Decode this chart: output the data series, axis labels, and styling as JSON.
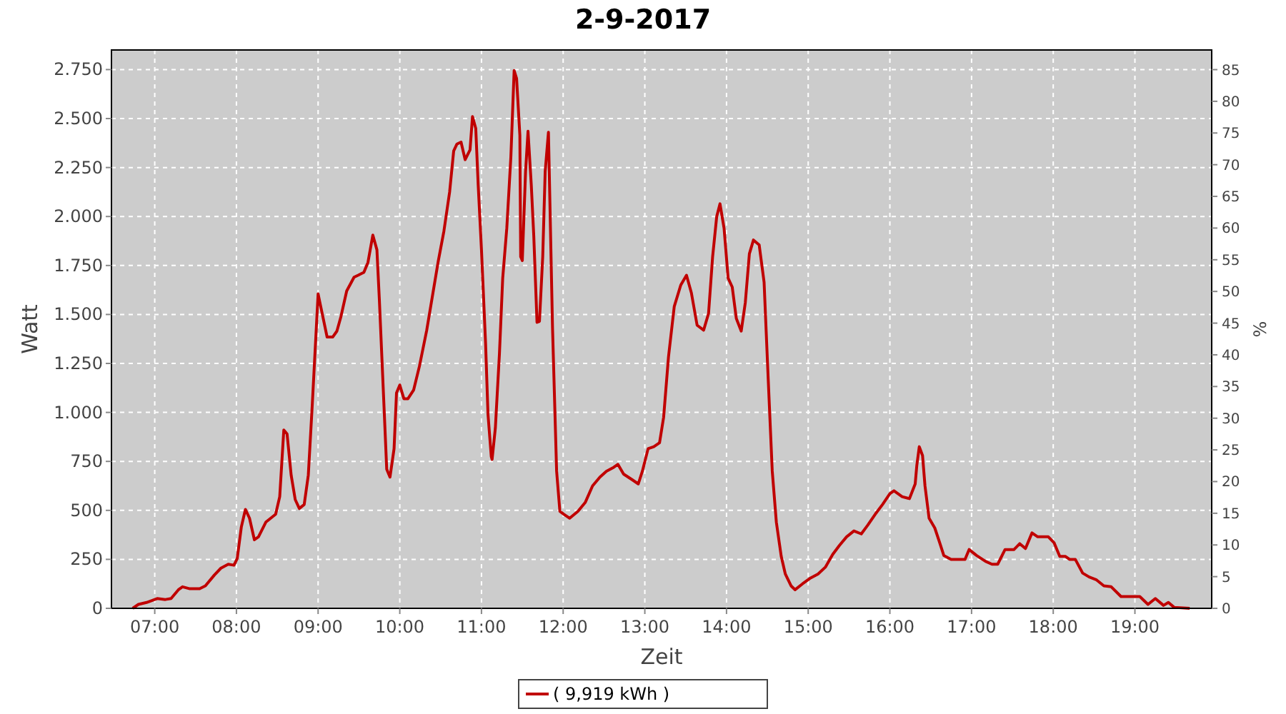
{
  "chart_data": {
    "type": "line",
    "title": "2-9-2017",
    "xlabel": "Zeit",
    "ylabel": "Watt",
    "y2label": "%",
    "xlim": [
      6.47,
      19.94
    ],
    "ylim": [
      0,
      2850
    ],
    "y2lim": [
      0,
      88.1
    ],
    "xticks": [
      {
        "value": 7,
        "label": "07:00"
      },
      {
        "value": 8,
        "label": "08:00"
      },
      {
        "value": 9,
        "label": "09:00"
      },
      {
        "value": 10,
        "label": "10:00"
      },
      {
        "value": 11,
        "label": "11:00"
      },
      {
        "value": 12,
        "label": "12:00"
      },
      {
        "value": 13,
        "label": "13:00"
      },
      {
        "value": 14,
        "label": "14:00"
      },
      {
        "value": 15,
        "label": "15:00"
      },
      {
        "value": 16,
        "label": "16:00"
      },
      {
        "value": 17,
        "label": "17:00"
      },
      {
        "value": 18,
        "label": "18:00"
      },
      {
        "value": 19,
        "label": "19:00"
      }
    ],
    "yticks": [
      0,
      250,
      500,
      750,
      {
        "value": 1000,
        "label": "1.000"
      },
      {
        "value": 1250,
        "label": "1.250"
      },
      {
        "value": 1500,
        "label": "1.500"
      },
      {
        "value": 1750,
        "label": "1.750"
      },
      {
        "value": 2000,
        "label": "2.000"
      },
      {
        "value": 2250,
        "label": "2.250"
      },
      {
        "value": 2500,
        "label": "2.500"
      },
      {
        "value": 2750,
        "label": "2.750"
      }
    ],
    "y2ticks": [
      0,
      5,
      10,
      15,
      20,
      25,
      30,
      35,
      40,
      45,
      50,
      55,
      60,
      65,
      70,
      75,
      80,
      85
    ],
    "grid": true,
    "legend": "bottom",
    "line_style": "solid",
    "marker": "none",
    "x": [
      6.73,
      6.8,
      6.9,
      7.03,
      7.13,
      7.2,
      7.29,
      7.34,
      7.43,
      7.55,
      7.62,
      7.73,
      7.81,
      7.9,
      7.97,
      8.01,
      8.06,
      8.11,
      8.16,
      8.22,
      8.27,
      8.36,
      8.42,
      8.48,
      8.53,
      8.58,
      8.62,
      8.67,
      8.72,
      8.77,
      8.83,
      8.88,
      8.93,
      9.0,
      9.05,
      9.11,
      9.18,
      9.23,
      9.28,
      9.35,
      9.44,
      9.49,
      9.56,
      9.61,
      9.67,
      9.72,
      9.75,
      9.81,
      9.84,
      9.88,
      9.93,
      9.96,
      10.0,
      10.05,
      10.1,
      10.17,
      10.24,
      10.33,
      10.4,
      10.47,
      10.54,
      10.61,
      10.66,
      10.7,
      10.75,
      10.8,
      10.86,
      10.89,
      10.93,
      10.96,
      11.0,
      11.05,
      11.08,
      11.12,
      11.13,
      11.17,
      11.22,
      11.26,
      11.31,
      11.36,
      11.4,
      11.43,
      11.47,
      11.48,
      11.5,
      11.54,
      11.57,
      11.61,
      11.64,
      11.68,
      11.71,
      11.75,
      11.78,
      11.82,
      11.83,
      11.87,
      11.92,
      11.96,
      12.01,
      12.08,
      12.18,
      12.27,
      12.36,
      12.45,
      12.53,
      12.62,
      12.67,
      12.74,
      12.85,
      12.92,
      12.97,
      13.04,
      13.11,
      13.18,
      13.23,
      13.29,
      13.36,
      13.44,
      13.51,
      13.57,
      13.64,
      13.72,
      13.78,
      13.83,
      13.88,
      13.92,
      13.97,
      14.02,
      14.07,
      14.12,
      14.18,
      14.23,
      14.28,
      14.33,
      14.4,
      14.46,
      14.51,
      14.56,
      14.61,
      14.67,
      14.72,
      14.79,
      14.84,
      14.93,
      15.03,
      15.12,
      15.21,
      15.3,
      15.38,
      15.47,
      15.56,
      15.65,
      15.73,
      15.82,
      15.91,
      16.0,
      16.05,
      16.15,
      16.24,
      16.31,
      16.33,
      16.36,
      16.4,
      16.43,
      16.48,
      16.55,
      16.61,
      16.66,
      16.75,
      16.83,
      16.92,
      16.97,
      17.06,
      17.17,
      17.25,
      17.32,
      17.41,
      17.52,
      17.59,
      17.66,
      17.74,
      17.81,
      17.94,
      18.01,
      18.08,
      18.15,
      18.2,
      18.27,
      18.36,
      18.44,
      18.53,
      18.62,
      18.71,
      18.83,
      18.95,
      19.06,
      19.16,
      19.25,
      19.35,
      19.41,
      19.48,
      19.67
    ],
    "series": [
      {
        "name": "( 9,919 kWh )",
        "color": "#c00000",
        "values": [
          0,
          20,
          30,
          50,
          45,
          50,
          95,
          110,
          100,
          100,
          115,
          170,
          205,
          225,
          220,
          255,
          415,
          505,
          460,
          350,
          365,
          440,
          460,
          480,
          570,
          910,
          890,
          680,
          555,
          510,
          530,
          680,
          1050,
          1605,
          1505,
          1385,
          1385,
          1415,
          1490,
          1620,
          1690,
          1700,
          1715,
          1765,
          1905,
          1830,
          1575,
          1000,
          710,
          670,
          815,
          1100,
          1140,
          1070,
          1070,
          1115,
          1235,
          1420,
          1595,
          1770,
          1925,
          2125,
          2335,
          2370,
          2380,
          2290,
          2340,
          2510,
          2450,
          2160,
          1830,
          1355,
          990,
          775,
          760,
          920,
          1300,
          1685,
          1940,
          2305,
          2745,
          2705,
          2415,
          1795,
          1775,
          2230,
          2435,
          2160,
          1905,
          1460,
          1465,
          1795,
          2230,
          2430,
          2230,
          1430,
          700,
          495,
          480,
          460,
          495,
          540,
          625,
          670,
          700,
          720,
          735,
          685,
          655,
          635,
          700,
          815,
          825,
          845,
          975,
          1285,
          1540,
          1650,
          1700,
          1610,
          1445,
          1420,
          1505,
          1795,
          2000,
          2065,
          1940,
          1685,
          1640,
          1480,
          1415,
          1560,
          1810,
          1880,
          1855,
          1665,
          1175,
          700,
          440,
          265,
          175,
          115,
          95,
          125,
          155,
          175,
          210,
          275,
          320,
          365,
          395,
          380,
          425,
          480,
          530,
          585,
          600,
          570,
          560,
          635,
          730,
          825,
          780,
          625,
          460,
          410,
          335,
          270,
          250,
          250,
          250,
          300,
          270,
          240,
          225,
          225,
          300,
          300,
          330,
          305,
          385,
          365,
          365,
          335,
          265,
          265,
          250,
          250,
          180,
          160,
          145,
          115,
          110,
          60,
          60,
          60,
          20,
          50,
          15,
          30,
          5,
          0
        ]
      }
    ]
  }
}
